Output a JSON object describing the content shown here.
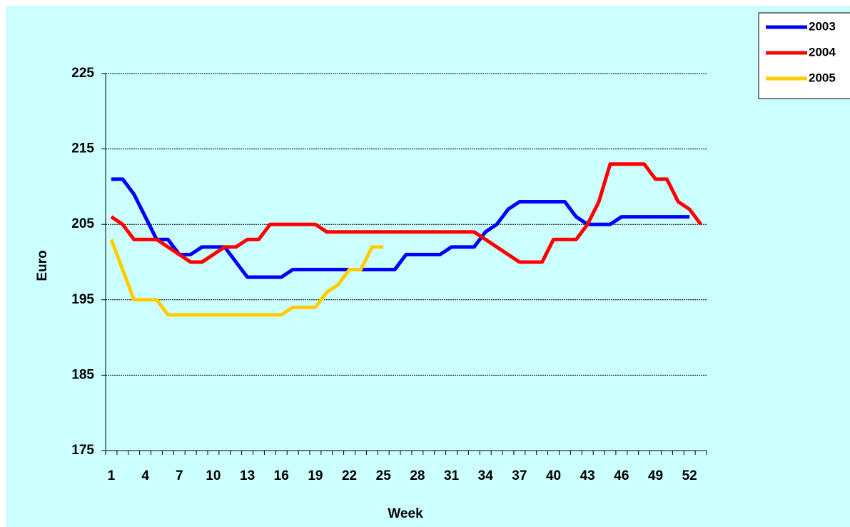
{
  "chart_data": {
    "type": "line",
    "x_label": "Week",
    "y_label": "Euro",
    "categories": [
      "1",
      null,
      null,
      "4",
      null,
      null,
      "7",
      null,
      null,
      "10",
      null,
      null,
      "13",
      null,
      null,
      "16",
      null,
      null,
      "19",
      null,
      null,
      "22",
      null,
      null,
      "25",
      null,
      null,
      "28",
      null,
      null,
      "31",
      null,
      null,
      "34",
      null,
      null,
      "37",
      null,
      null,
      "40",
      null,
      null,
      "43",
      null,
      null,
      "46",
      null,
      null,
      "49",
      null,
      null,
      "52",
      null
    ],
    "series": [
      {
        "name": "2003",
        "color": "#0000ff",
        "values": [
          211,
          211,
          209,
          206,
          203,
          203,
          201,
          201,
          202,
          202,
          202,
          200,
          198,
          198,
          198,
          198,
          199,
          199,
          199,
          199,
          199,
          199,
          199,
          199,
          199,
          199,
          201,
          201,
          201,
          201,
          202,
          202,
          202,
          204,
          205,
          207,
          208,
          208,
          208,
          208,
          208,
          206,
          205,
          205,
          205,
          206,
          206,
          206,
          206,
          206,
          206,
          206,
          null
        ]
      },
      {
        "name": "2004",
        "color": "#ff0000",
        "values": [
          206,
          205,
          203,
          203,
          203,
          202,
          201,
          200,
          200,
          201,
          202,
          202,
          203,
          203,
          205,
          205,
          205,
          205,
          205,
          204,
          204,
          204,
          204,
          204,
          204,
          204,
          204,
          204,
          204,
          204,
          204,
          204,
          204,
          203,
          202,
          201,
          200,
          200,
          200,
          203,
          203,
          203,
          205,
          208,
          213,
          213,
          213,
          213,
          211,
          211,
          208,
          207,
          205
        ]
      },
      {
        "name": "2005",
        "color": "#ffcc00",
        "values": [
          203,
          199,
          195,
          195,
          195,
          193,
          193,
          193,
          193,
          193,
          193,
          193,
          193,
          193,
          193,
          193,
          194,
          194,
          194,
          196,
          197,
          199,
          199,
          202,
          202,
          null,
          null,
          null,
          null,
          null,
          null,
          null,
          null,
          null,
          null,
          null,
          null,
          null,
          null,
          null,
          null,
          null,
          null,
          null,
          null,
          null,
          null,
          null,
          null,
          null,
          null,
          null,
          null
        ]
      }
    ],
    "ylim": [
      175,
      225
    ],
    "yticks": [
      175,
      185,
      195,
      205,
      215,
      225
    ],
    "grid": true,
    "legend": "top-right"
  }
}
